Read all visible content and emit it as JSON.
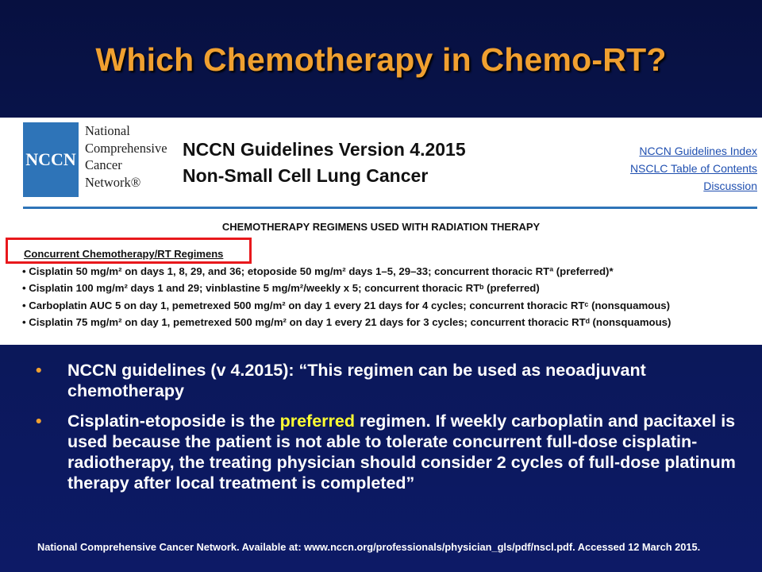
{
  "slide": {
    "title": "Which Chemotherapy in Chemo-RT?"
  },
  "nccn": {
    "logo_text": "NCCN",
    "org_lines": [
      "National",
      "Comprehensive",
      "Cancer",
      "Network®"
    ],
    "guideline_title_line1": "NCCN Guidelines Version 4.2015",
    "guideline_title_line2": "Non-Small Cell Lung Cancer",
    "links": [
      "NCCN Guidelines Index",
      "NSCLC Table of Contents",
      "Discussion"
    ],
    "section_title": "CHEMOTHERAPY REGIMENS USED WITH RADIATION THERAPY",
    "subhead": "Concurrent Chemotherapy/RT Regimens",
    "regimens": [
      "• Cisplatin 50 mg/m² on days 1, 8, 29, and 36; etoposide 50 mg/m² days 1–5, 29–33; concurrent thoracic RTª (preferred)*",
      "• Cisplatin 100 mg/m² days 1 and 29; vinblastine 5 mg/m²/weekly x 5; concurrent thoracic RTᵇ (preferred)",
      "• Carboplatin AUC 5 on day 1, pemetrexed 500 mg/m² on day 1 every 21 days for 4 cycles; concurrent thoracic RTᶜ (nonsquamous)",
      "• Cisplatin 75 mg/m² on day 1, pemetrexed 500 mg/m² on day 1 every 21 days for 3 cycles; concurrent thoracic RTᵈ (nonsquamous)"
    ]
  },
  "bullets": {
    "b1": "NCCN guidelines (v 4.2015): “This regimen can be used as neoadjuvant chemotherapy",
    "b2_before": "Cisplatin-etoposide is the ",
    "b2_highlight": "preferred",
    "b2_after": " regimen. If weekly carboplatin and pacitaxel is used because the patient is not able to tolerate concurrent full-dose cisplatin-radiotherapy, the treating physician should consider 2 cycles of full-dose platinum therapy after local treatment is completed”"
  },
  "reference": "National Comprehensive Cancer Network. Available at: www.nccn.org/professionals/physician_gls/pdf/nscl.pdf. Accessed 12 March 2015."
}
